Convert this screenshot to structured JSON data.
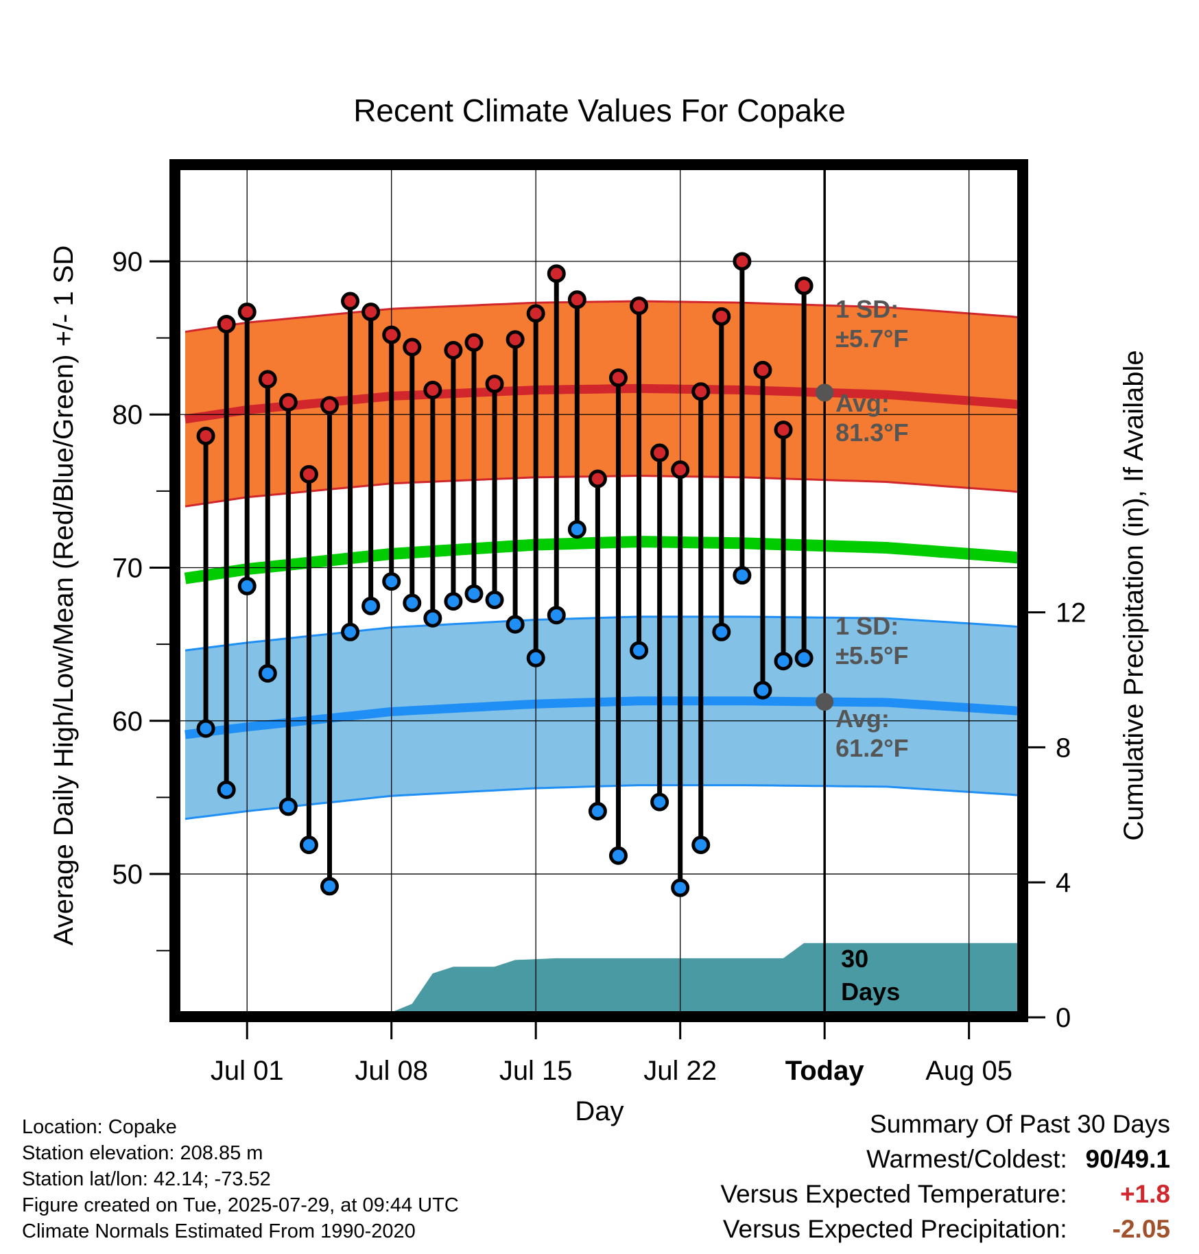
{
  "chart_data": {
    "type": "line",
    "title": "Recent Climate Values For Copake",
    "xlabel": "Day",
    "ylabel": "Average Daily High/Low/Mean (Red/Blue/Green) +/- 1 SD",
    "y2label": "Cumulative Precipitation (in), If Available",
    "ylim": [
      41,
      96
    ],
    "y2lim": [
      0,
      18
    ],
    "yticks": [
      50,
      60,
      70,
      80,
      90
    ],
    "y2ticks": [
      0,
      4,
      8,
      12
    ],
    "xticks": [
      "Jul 01",
      "Jul 08",
      "Jul 15",
      "Jul 22",
      "Today",
      "Aug 05"
    ],
    "today_label": "Today",
    "grid": true,
    "dates": [
      "2025-06-29",
      "2025-06-30",
      "2025-07-01",
      "2025-07-02",
      "2025-07-03",
      "2025-07-04",
      "2025-07-05",
      "2025-07-06",
      "2025-07-07",
      "2025-07-08",
      "2025-07-09",
      "2025-07-10",
      "2025-07-11",
      "2025-07-12",
      "2025-07-13",
      "2025-07-14",
      "2025-07-15",
      "2025-07-16",
      "2025-07-17",
      "2025-07-18",
      "2025-07-19",
      "2025-07-20",
      "2025-07-21",
      "2025-07-22",
      "2025-07-23",
      "2025-07-24",
      "2025-07-25",
      "2025-07-26",
      "2025-07-27",
      "2025-07-28"
    ],
    "series": [
      {
        "name": "High",
        "values": [
          78.6,
          85.9,
          86.7,
          82.3,
          80.8,
          76.1,
          80.6,
          87.4,
          86.7,
          85.2,
          84.4,
          81.6,
          84.2,
          84.7,
          82.0,
          84.9,
          86.6,
          89.2,
          87.5,
          75.8,
          82.4,
          87.1,
          77.5,
          76.4,
          81.5,
          86.4,
          90.0,
          82.9,
          79.0,
          88.4
        ]
      },
      {
        "name": "Low",
        "values": [
          59.5,
          55.5,
          68.8,
          63.1,
          54.4,
          51.9,
          49.2,
          65.8,
          67.5,
          69.1,
          67.7,
          66.7,
          67.8,
          68.3,
          67.9,
          66.3,
          64.1,
          66.9,
          72.5,
          54.1,
          51.2,
          64.6,
          54.7,
          49.1,
          51.9,
          65.8,
          69.5,
          62.0,
          63.9,
          64.1
        ]
      }
    ],
    "normals": {
      "dates": [
        "2025-06-28",
        "2025-07-01",
        "2025-07-08",
        "2025-07-15",
        "2025-07-20",
        "2025-07-25",
        "2025-08-01",
        "2025-08-08"
      ],
      "high_avg": [
        79.7,
        80.3,
        81.2,
        81.6,
        81.7,
        81.6,
        81.3,
        80.6
      ],
      "high_sd": 5.7,
      "low_avg": [
        59.1,
        59.6,
        60.6,
        61.1,
        61.3,
        61.3,
        61.2,
        60.6
      ],
      "low_sd": 5.5,
      "mean_avg": [
        69.3,
        69.9,
        70.9,
        71.5,
        71.7,
        71.6,
        71.3,
        70.6
      ]
    },
    "precip_cumulative": {
      "dates": [
        "2025-06-28",
        "2025-07-02",
        "2025-07-03",
        "2025-07-08",
        "2025-07-09",
        "2025-07-10",
        "2025-07-11",
        "2025-07-13",
        "2025-07-14",
        "2025-07-16",
        "2025-07-27",
        "2025-07-28",
        "2025-08-08"
      ],
      "values": [
        0.0,
        0.0,
        0.12,
        0.15,
        0.4,
        1.3,
        1.5,
        1.5,
        1.7,
        1.75,
        1.75,
        2.2,
        2.2
      ]
    },
    "annotations": {
      "high_sd_label": "1 SD:",
      "high_sd_value": "±5.7°F",
      "high_avg_label": "Avg:",
      "high_avg_value": "81.3°F",
      "low_sd_label": "1 SD:",
      "low_sd_value": "±5.5°F",
      "low_avg_label": "Avg:",
      "low_avg_value": "61.2°F",
      "precip_label_1": "30",
      "precip_label_2": "Days"
    },
    "colors": {
      "high_band": "#f47b31",
      "high_line": "#d1262c",
      "low_band": "#84c1e6",
      "low_line": "#1f8ff5",
      "mean_line": "#00cc00",
      "precip": "#4a9aa3",
      "high_dot": "#d1262c",
      "low_dot": "#1f8ff5",
      "marker": "#555555"
    }
  },
  "footer": {
    "location": "Location: Copake",
    "elevation": "Station elevation: 208.85 m",
    "latlon": "Station lat/lon: 42.14; -73.52",
    "created": "Figure created on Tue, 2025-07-29, at 09:44 UTC",
    "normals": "Climate Normals Estimated From 1990-2020"
  },
  "summary": {
    "title": "Summary Of Past 30 Days",
    "warmest_label": "Warmest/Coldest:",
    "warmest_value": "90/49.1",
    "temp_label": "Versus Expected Temperature:",
    "temp_value": "+1.8",
    "temp_color": "#d1262c",
    "precip_label": "Versus Expected Precipitation:",
    "precip_value": "-2.05",
    "precip_color": "#a0522d"
  }
}
